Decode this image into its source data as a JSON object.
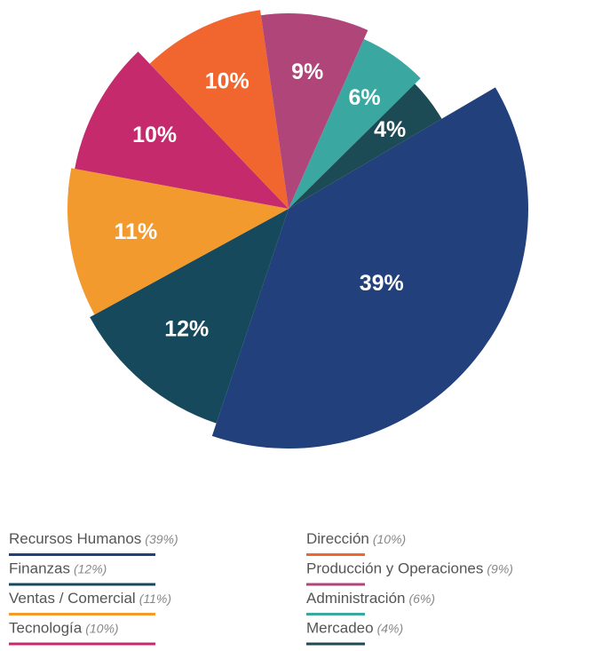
{
  "chart_data": {
    "type": "pie",
    "categories": [
      "Recursos Humanos",
      "Finanzas",
      "Ventas / Comercial",
      "Tecnología",
      "Dirección",
      "Producción y Operaciones",
      "Administración",
      "Mercadeo"
    ],
    "values": [
      39,
      12,
      11,
      10,
      10,
      9,
      6,
      4
    ],
    "value_labels": [
      "39%",
      "12%",
      "11%",
      "10%",
      "10%",
      "9%",
      "6%",
      "4%"
    ],
    "legend_value_labels": [
      "(39%)",
      "(12%)",
      "(11%)",
      "(10%)",
      "(10%)",
      "(9%)",
      "(6%)",
      "(4%)"
    ],
    "colors": [
      "#21407c",
      "#17495c",
      "#f29a2e",
      "#c42a6c",
      "#f0662e",
      "#b0457a",
      "#3aa8a0",
      "#1c4a55"
    ]
  }
}
